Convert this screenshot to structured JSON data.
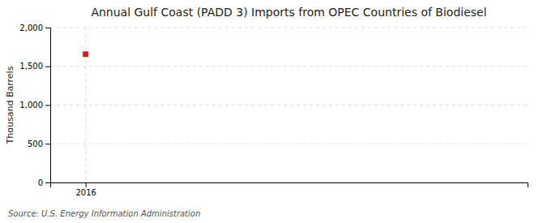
{
  "chart_data": {
    "type": "scatter",
    "title": "Annual Gulf Coast (PADD 3) Imports from OPEC Countries of Biodiesel",
    "y_label": "Thousand Barrels",
    "annotations": [
      "Source: U.S. Energy Information Administration"
    ],
    "x": [
      2016
    ],
    "values": [
      1656
    ],
    "color": "#cc2222",
    "marker": "square",
    "xlim": [
      2015.6,
      2021
    ],
    "xticks": [
      2016
    ],
    "ylim": [
      0,
      2000
    ],
    "yticks": [
      0,
      500,
      {
        "value": 1000,
        "label": "1,000"
      },
      {
        "value": 1500,
        "label": "1,500"
      },
      {
        "value": 2000,
        "label": "2,000"
      }
    ],
    "grid": true
  }
}
